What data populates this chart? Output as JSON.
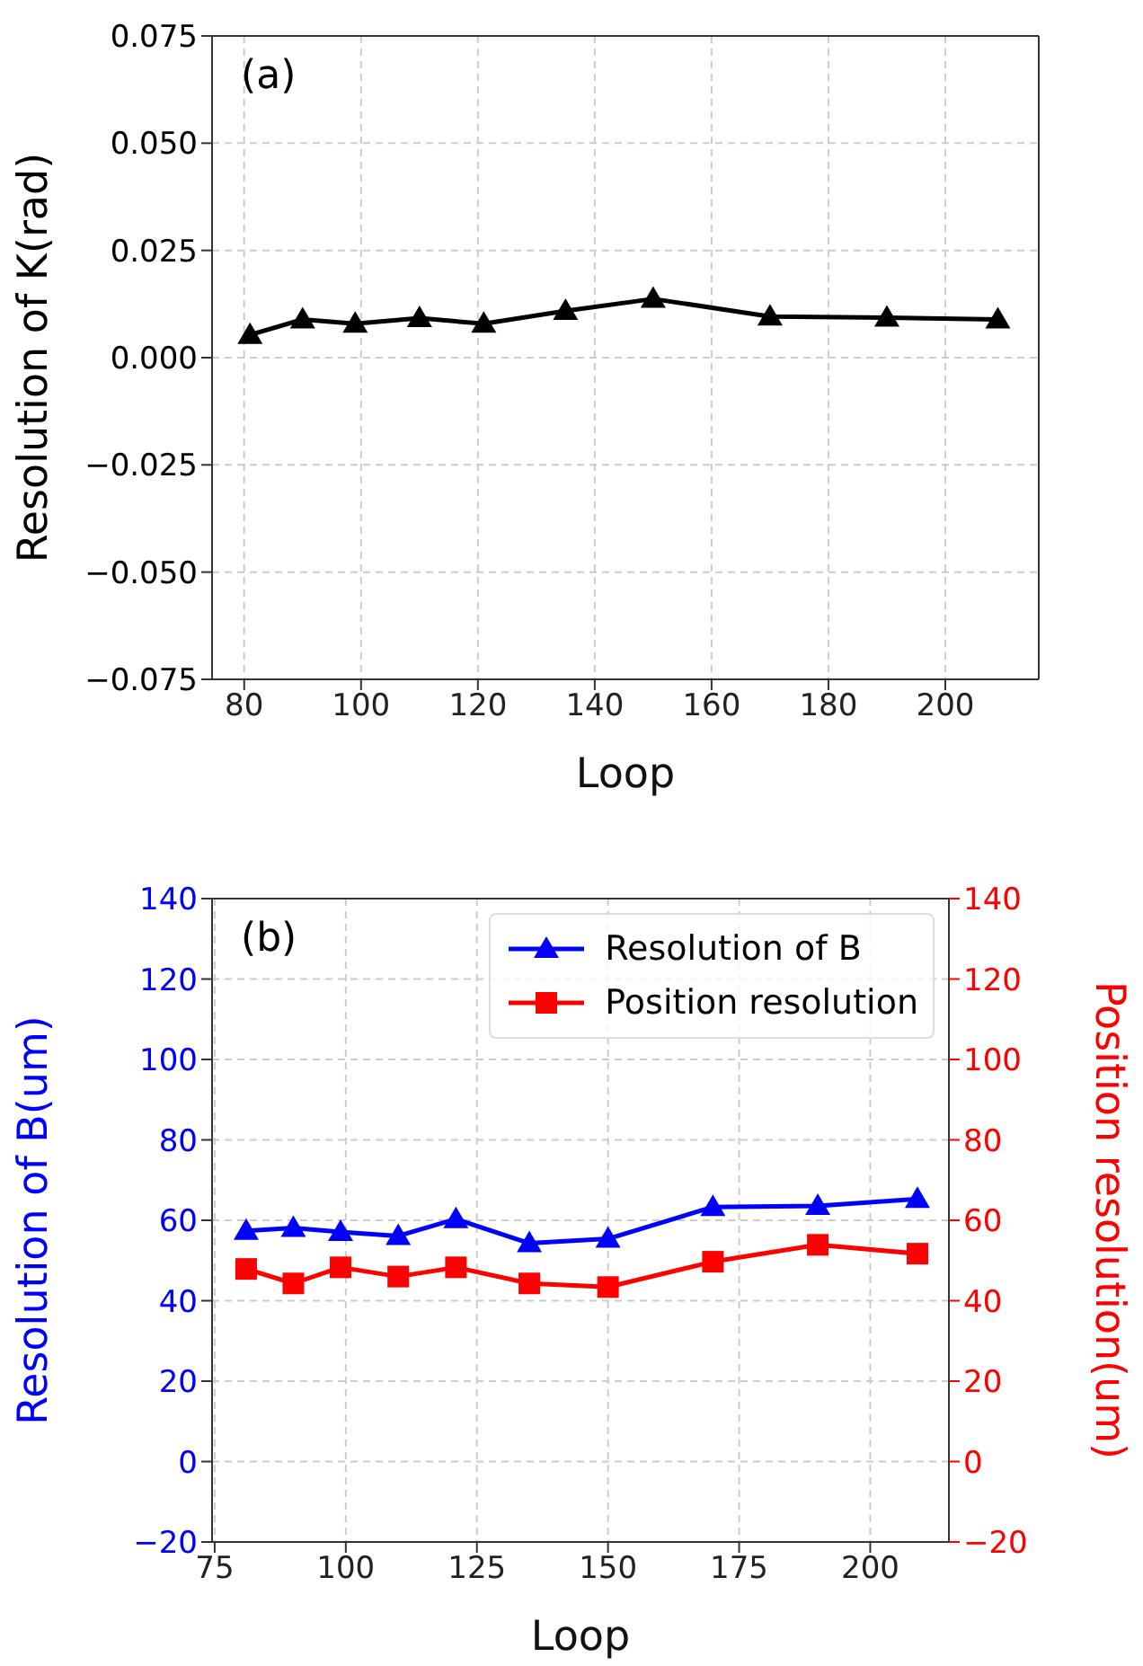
{
  "chart_data": [
    {
      "type": "line",
      "xlabel": "Loop",
      "ylabel": "Resolution of K(rad)",
      "annotations": [
        "(a)"
      ],
      "marker": "triangle",
      "line_style": "solid",
      "grid": true,
      "legend": false,
      "xlim": [
        74.5,
        216
      ],
      "xticks": [
        80,
        100,
        120,
        140,
        160,
        180,
        200
      ],
      "ylim": [
        -0.075,
        0.075
      ],
      "yticks": [
        {
          "value": -0.075,
          "label": "−0.075"
        },
        {
          "value": -0.05,
          "label": "−0.050"
        },
        {
          "value": -0.025,
          "label": "−0.025"
        },
        {
          "value": 0,
          "label": "0.000"
        },
        {
          "value": 0.025,
          "label": "0.025"
        },
        {
          "value": 0.05,
          "label": "0.050"
        },
        {
          "value": 0.075,
          "label": "0.075"
        }
      ],
      "series": [
        {
          "color": "#000000",
          "x": [
            81,
            90,
            99,
            110,
            121,
            135,
            150,
            170,
            190,
            209
          ],
          "values": [
            0.0053,
            0.0089,
            0.0079,
            0.0092,
            0.0079,
            0.0109,
            0.0137,
            0.0096,
            0.0093,
            0.0089
          ]
        }
      ]
    },
    {
      "type": "line",
      "xlabel": "Loop",
      "ylabel": "Resolution of B(um)",
      "y2label": "Position resolution(um)",
      "annotations": [
        "(b)"
      ],
      "line_style": "solid",
      "grid": true,
      "legend": "top right",
      "xlim": [
        74.5,
        215
      ],
      "xticks": [
        75,
        100,
        125,
        150,
        175,
        200
      ],
      "ylim": [
        -20,
        140
      ],
      "yticks": [
        -20,
        0,
        20,
        40,
        60,
        80,
        100,
        120,
        140
      ],
      "y2lim": [
        -20,
        140
      ],
      "y2ticks": [
        -20,
        0,
        20,
        40,
        60,
        80,
        100,
        120,
        140
      ],
      "series": [
        {
          "name": "Resolution of B",
          "color": "#0000ff",
          "marker": "triangle",
          "x": [
            81,
            90,
            99,
            110,
            121,
            135,
            150,
            170,
            190,
            209
          ],
          "values": [
            57.4,
            58.1,
            57.1,
            56.1,
            60.3,
            54.3,
            55.4,
            63.3,
            63.6,
            65.3
          ]
        },
        {
          "name": "Position resolution",
          "color": "#ff0000",
          "marker": "square",
          "axis": "y2",
          "x": [
            81,
            90,
            99,
            110,
            121,
            135,
            150,
            170,
            190,
            209
          ],
          "values": [
            47.9,
            44.3,
            48.3,
            46,
            48.3,
            44.3,
            43.4,
            49.7,
            53.9,
            51.7
          ]
        }
      ]
    }
  ]
}
